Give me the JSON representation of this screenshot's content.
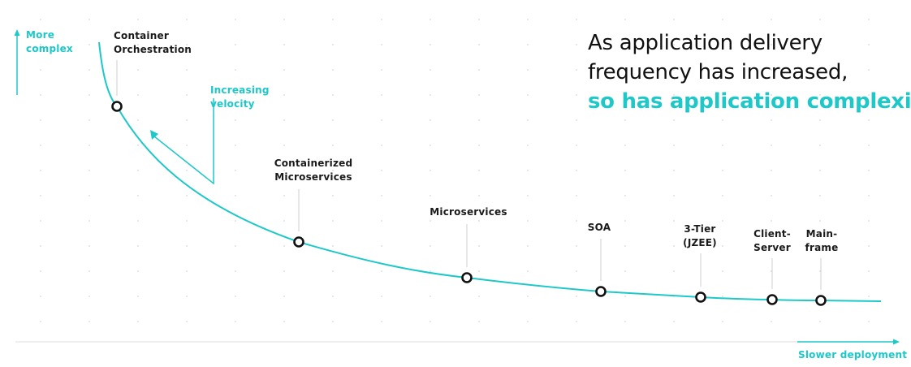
{
  "headline": {
    "line1": "As application delivery",
    "line2": "frequency has increased,",
    "line3": "so has application complexity."
  },
  "axes": {
    "y_label_line1": "More",
    "y_label_line2": "complex",
    "x_label": "Slower deployment"
  },
  "velocity_label": {
    "line1": "Increasing",
    "line2": "velocity"
  },
  "milestones": [
    {
      "id": "container-orchestration",
      "line1": "Container",
      "line2": "Orchestration"
    },
    {
      "id": "containerized-microservices",
      "line1": "Containerized",
      "line2": "Microservices"
    },
    {
      "id": "microservices",
      "line1": "Microservices",
      "line2": ""
    },
    {
      "id": "soa",
      "line1": "SOA",
      "line2": ""
    },
    {
      "id": "3-tier",
      "line1": "3-Tier",
      "line2": "(JZEE)"
    },
    {
      "id": "client-server",
      "line1": "Client-",
      "line2": "Server"
    },
    {
      "id": "mainframe",
      "line1": "Main-",
      "line2": "frame"
    }
  ],
  "colors": {
    "accent": "#1ec8c8",
    "text": "#1a1a1a",
    "grid_dots": "#d6d6d6"
  }
}
